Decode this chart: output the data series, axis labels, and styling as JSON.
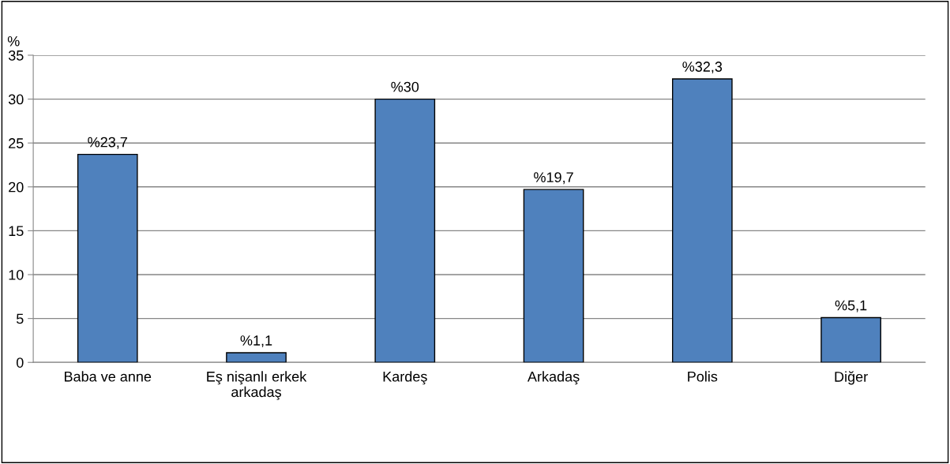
{
  "chart_data": {
    "type": "bar",
    "ylabel": "%",
    "categories": [
      "Baba ve anne",
      "Eş nişanlı erkek\narkadaş",
      "Kardeş",
      "Arkadaş",
      "Polis",
      "Diğer"
    ],
    "values": [
      23.7,
      1.1,
      30,
      19.7,
      32.3,
      5.1
    ],
    "value_labels": [
      "%23,7",
      "%1,1",
      "%30",
      "%19,7",
      "%32,3",
      "%5,1"
    ],
    "color": "#4f81bd",
    "ylim": [
      0,
      35
    ],
    "yticks": [
      0,
      5,
      10,
      15,
      20,
      25,
      30,
      35
    ],
    "grid": "y",
    "legend": false
  }
}
